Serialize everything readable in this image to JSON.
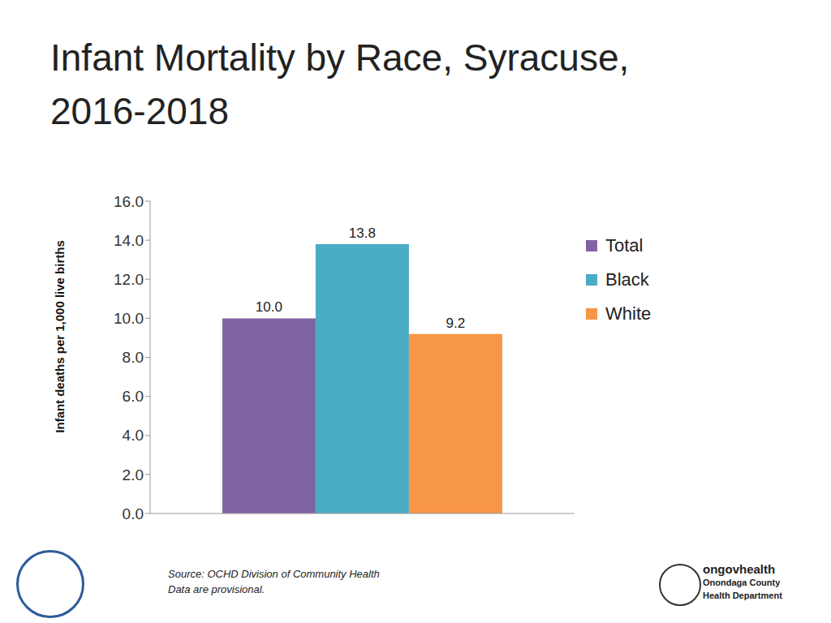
{
  "chart_data": {
    "type": "bar",
    "title": "Infant Mortality by Race, Syracuse, 2016-2018",
    "y_label": "Infant deaths per 1,000 live births",
    "categories": [
      null
    ],
    "series": [
      {
        "name": "Total",
        "color": "#8064a2",
        "values": [
          10.0
        ],
        "value_labels": [
          "10.0"
        ]
      },
      {
        "name": "Black",
        "color": "#4bacc6",
        "values": [
          13.8
        ],
        "value_labels": [
          "13.8"
        ]
      },
      {
        "name": "White",
        "color": "#f79646",
        "values": [
          9.2
        ],
        "value_labels": [
          "9.2"
        ]
      }
    ],
    "ylim": [
      0,
      16
    ],
    "yticks": [
      {
        "value": 0,
        "label": "0.0"
      },
      {
        "value": 2,
        "label": "2.0"
      },
      {
        "value": 4,
        "label": "4.0"
      },
      {
        "value": 6,
        "label": "6.0"
      },
      {
        "value": 8,
        "label": "8.0"
      },
      {
        "value": 10,
        "label": "10.0"
      },
      {
        "value": 12,
        "label": "12.0"
      },
      {
        "value": 14,
        "label": "14.0"
      },
      {
        "value": 16,
        "label": "16.0"
      }
    ],
    "grid": false,
    "legend": "upper right",
    "data_labels": true,
    "annotations": [
      "Source: OCHD Division of Community Health",
      "Data are provisional.",
      "ongovhealth",
      "Onondaga County Health Department"
    ]
  }
}
